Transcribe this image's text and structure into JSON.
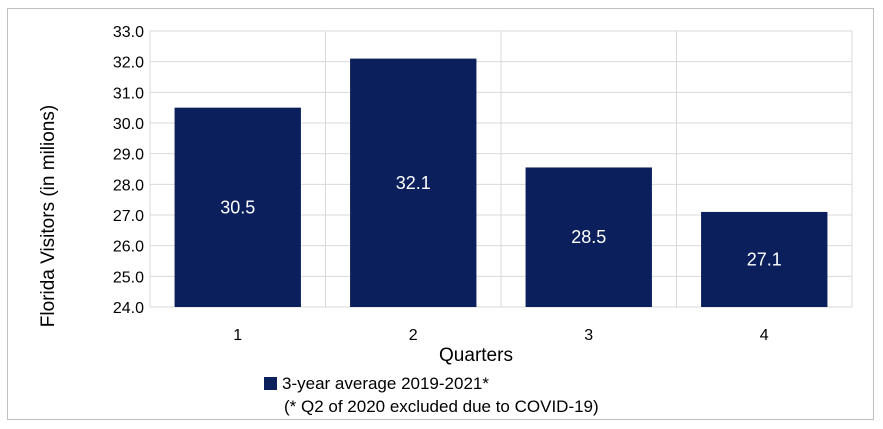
{
  "chart_data": {
    "type": "bar",
    "title": "",
    "xlabel": "Quarters",
    "ylabel": "Florida Visitors (in milions)",
    "categories": [
      "1",
      "2",
      "3",
      "4"
    ],
    "series": [
      {
        "name": "3-year average 2019-2021*",
        "values": [
          30.5,
          32.1,
          28.55,
          27.1
        ],
        "labels": [
          "30.5",
          "32.1",
          "28.5",
          "27.1"
        ],
        "color": "#0a1f5c"
      }
    ],
    "ylim": [
      24.0,
      33.0
    ],
    "yticks": [
      "24.0",
      "25.0",
      "26.0",
      "27.0",
      "28.0",
      "29.0",
      "30.0",
      "31.0",
      "32.0",
      "33.0"
    ],
    "grid": true,
    "legend_position": "bottom",
    "footnote": "(* Q2 of 2020 excluded due to COVID-19)"
  }
}
